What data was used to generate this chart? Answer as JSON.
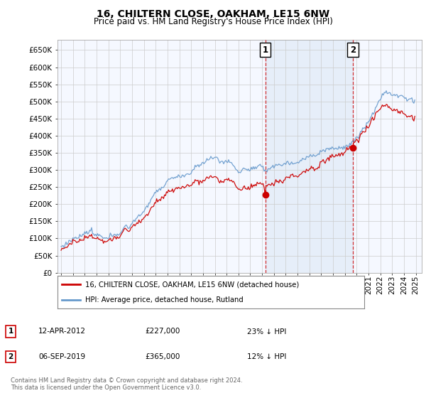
{
  "title": "16, CHILTERN CLOSE, OAKHAM, LE15 6NW",
  "subtitle": "Price paid vs. HM Land Registry's House Price Index (HPI)",
  "ylim": [
    0,
    680000
  ],
  "yticks": [
    0,
    50000,
    100000,
    150000,
    200000,
    250000,
    300000,
    350000,
    400000,
    450000,
    500000,
    550000,
    600000,
    650000
  ],
  "ytick_labels": [
    "£0",
    "£50K",
    "£100K",
    "£150K",
    "£200K",
    "£250K",
    "£300K",
    "£350K",
    "£400K",
    "£450K",
    "£500K",
    "£550K",
    "£600K",
    "£650K"
  ],
  "legend_line1": "16, CHILTERN CLOSE, OAKHAM, LE15 6NW (detached house)",
  "legend_line2": "HPI: Average price, detached house, Rutland",
  "annotation1_num": "1",
  "annotation1_date": "12-APR-2012",
  "annotation1_price": "£227,000",
  "annotation1_note": "23% ↓ HPI",
  "annotation1_year": 2012.28,
  "annotation1_value": 227000,
  "annotation2_num": "2",
  "annotation2_date": "06-SEP-2019",
  "annotation2_price": "£365,000",
  "annotation2_note": "12% ↓ HPI",
  "annotation2_year": 2019.68,
  "annotation2_value": 365000,
  "line_color_red": "#cc0000",
  "line_color_blue": "#6699cc",
  "vline_color": "#cc0000",
  "background_plot": "#f5f8ff",
  "background_fig": "#ffffff",
  "grid_color": "#cccccc",
  "shade_color": "#dde8f5",
  "footer_text": "Contains HM Land Registry data © Crown copyright and database right 2024.\nThis data is licensed under the Open Government Licence v3.0.",
  "title_fontsize": 10,
  "subtitle_fontsize": 8.5,
  "tick_fontsize": 7.5
}
